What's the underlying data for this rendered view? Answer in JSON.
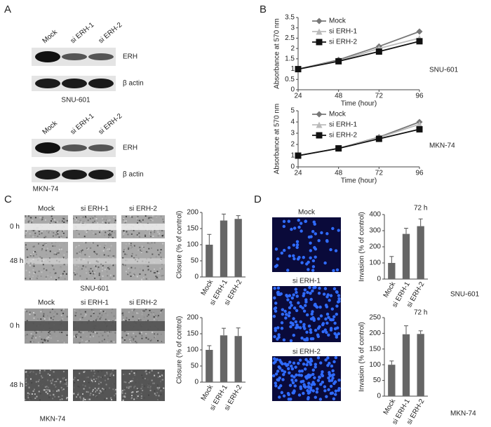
{
  "panels": [
    "A",
    "B",
    "C",
    "D"
  ],
  "blots": [
    {
      "lanes": [
        "Mock",
        "si ERH-1",
        "si ERH-2"
      ],
      "bands": [
        "ERH",
        "β actin"
      ],
      "cell_line": "SNU-601"
    },
    {
      "lanes": [
        "Mock",
        "si ERH-1",
        "si ERH-2"
      ],
      "bands": [
        "ERH",
        "β actin"
      ],
      "cell_line": "MKN-74"
    }
  ],
  "scratch": [
    {
      "columns": [
        "Mock",
        "si ERH-1",
        "si ERH-2"
      ],
      "rows": [
        "0 h",
        "48 h"
      ],
      "cell_line": "SNU-601"
    },
    {
      "columns": [
        "Mock",
        "si ERH-1",
        "si ERH-2"
      ],
      "rows": [
        "0 h",
        "48 h"
      ],
      "cell_line": "MKN-74"
    }
  ],
  "invasion_images": [
    "Mock",
    "si ERH-1",
    "si ERH-2"
  ],
  "chart_data": [
    {
      "type": "line",
      "ylabel": "Absorbance at 570 nm",
      "xlabel": "Time (hour)",
      "annotation": "SNU-601",
      "x": [
        24,
        48,
        72,
        96
      ],
      "xlim": [
        24,
        96
      ],
      "xticks": [
        24,
        48,
        72,
        96
      ],
      "ylim": [
        0,
        3.5
      ],
      "yticks": [
        0,
        0.5,
        1,
        1.5,
        2,
        2.5,
        3,
        3.5
      ],
      "series": [
        {
          "name": "Mock",
          "color": "#777777",
          "marker": "diamond",
          "values": [
            1,
            1.45,
            2.1,
            2.82
          ]
        },
        {
          "name": "si ERH-1",
          "color": "#bbbbbb",
          "marker": "triangle",
          "values": [
            1,
            1.4,
            2.0,
            2.5
          ]
        },
        {
          "name": "si ERH-2",
          "color": "#111111",
          "marker": "square",
          "values": [
            1,
            1.38,
            1.85,
            2.35
          ]
        }
      ]
    },
    {
      "type": "line",
      "ylabel": "Absorbance at 570 nm",
      "xlabel": "Time (hour)",
      "annotation": "MKN-74",
      "x": [
        24,
        48,
        72,
        96
      ],
      "xlim": [
        24,
        96
      ],
      "xticks": [
        24,
        48,
        72,
        96
      ],
      "ylim": [
        0,
        5
      ],
      "yticks": [
        0,
        1,
        2,
        3,
        4,
        5
      ],
      "series": [
        {
          "name": "Mock",
          "color": "#777777",
          "marker": "diamond",
          "values": [
            1,
            1.65,
            2.65,
            4.0
          ]
        },
        {
          "name": "si ERH-1",
          "color": "#bbbbbb",
          "marker": "triangle",
          "values": [
            1,
            1.65,
            2.6,
            3.8
          ]
        },
        {
          "name": "si ERH-2",
          "color": "#111111",
          "marker": "square",
          "values": [
            1,
            1.65,
            2.5,
            3.35
          ]
        }
      ]
    },
    {
      "type": "bar",
      "ylabel": "Closure (% of control)",
      "categories": [
        "Mock",
        "si ERH-1",
        "si ERH-2"
      ],
      "values": [
        100,
        175,
        180
      ],
      "errors": [
        32,
        20,
        10
      ],
      "color": "#666666",
      "ylim": [
        0,
        200
      ],
      "yticks": [
        0,
        50,
        100,
        150,
        200
      ]
    },
    {
      "type": "bar",
      "ylabel": "Closure (% of control)",
      "categories": [
        "Mock",
        "si ERH-1",
        "si ERH-2"
      ],
      "values": [
        100,
        145,
        143
      ],
      "errors": [
        13,
        22,
        25
      ],
      "color": "#666666",
      "ylim": [
        0,
        200
      ],
      "yticks": [
        0,
        50,
        100,
        150,
        200
      ]
    },
    {
      "type": "bar",
      "title": "72 h",
      "annotation": "SNU-601",
      "ylabel": "Invasion (% of control)",
      "categories": [
        "Mock",
        "si ERH-1",
        "si ERH-2"
      ],
      "values": [
        100,
        280,
        328
      ],
      "errors": [
        40,
        35,
        45
      ],
      "color": "#666666",
      "ylim": [
        0,
        400
      ],
      "yticks": [
        0,
        100,
        200,
        300,
        400
      ]
    },
    {
      "type": "bar",
      "title": "72 h",
      "annotation": "MKN-74",
      "ylabel": "Invasion (% of control)",
      "categories": [
        "Mock",
        "si ERH-1",
        "si ERH-2"
      ],
      "values": [
        100,
        197,
        198
      ],
      "errors": [
        12,
        27,
        10
      ],
      "color": "#666666",
      "ylim": [
        0,
        250
      ],
      "yticks": [
        0,
        50,
        100,
        150,
        200,
        250
      ]
    }
  ]
}
